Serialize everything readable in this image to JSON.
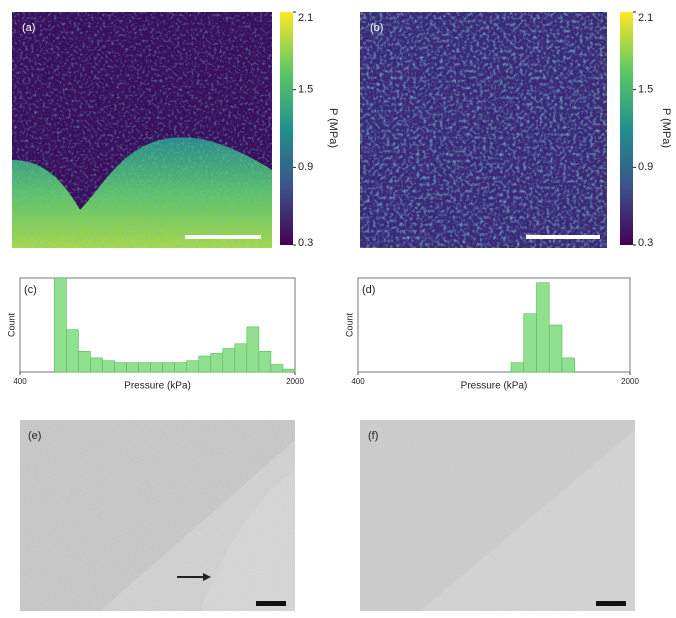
{
  "panels": {
    "a": "(a)",
    "b": "(b)",
    "e": "(e)",
    "f": "(f)"
  },
  "colorbar": {
    "label": "P (MPa)",
    "lim": [
      0.3,
      2.1
    ],
    "ticks": [
      0.3,
      0.9,
      1.5,
      2.1
    ]
  },
  "chart_data": [
    {
      "type": "histogram",
      "label": "(c)",
      "x_label": "Pressure (kPa)",
      "y_label": "Count",
      "color": "#8fe08f",
      "bins": [
        600,
        670,
        740,
        810,
        880,
        950,
        1020,
        1090,
        1160,
        1230,
        1300,
        1370,
        1440,
        1510,
        1580,
        1650,
        1720,
        1790,
        1860,
        1930,
        2000
      ],
      "values": [
        100,
        45,
        22,
        15,
        12,
        10,
        10,
        10,
        10,
        10,
        10,
        12,
        17,
        20,
        25,
        30,
        48,
        22,
        8,
        3
      ],
      "xlim": [
        400,
        2000
      ],
      "xticks": [
        400,
        2000
      ],
      "ylim": [
        0,
        100
      ]
    },
    {
      "type": "histogram",
      "label": "(d)",
      "x_label": "Pressure (kPa)",
      "y_label": "Count",
      "color": "#8fe08f",
      "bins": [
        1300,
        1375,
        1450,
        1525,
        1600,
        1675
      ],
      "values": [
        10,
        62,
        95,
        50,
        15
      ],
      "xlim": [
        400,
        2000
      ],
      "xticks": [
        400,
        2000
      ],
      "ylim": [
        0,
        100
      ]
    }
  ]
}
